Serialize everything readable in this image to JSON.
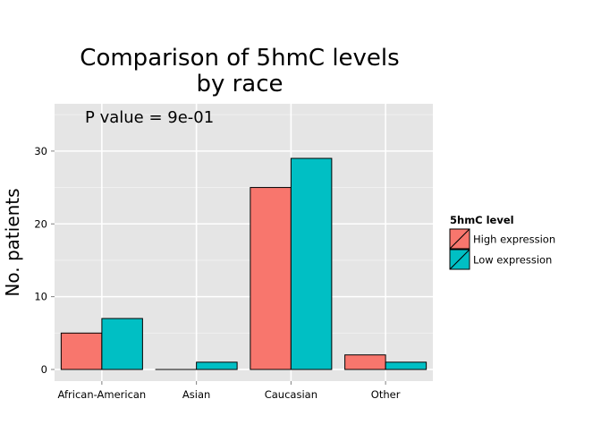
{
  "chart_data": {
    "type": "bar",
    "title_line1": "Comparison of 5hmC levels",
    "title_line2": "by race",
    "annotation": "P value = 9e-01",
    "xlabel": "",
    "ylabel": "No. patients",
    "categories": [
      "African-American",
      "Asian",
      "Caucasian",
      "Other"
    ],
    "series": [
      {
        "name": "High expression",
        "color": "#F8766D",
        "values": [
          5,
          0,
          25,
          2
        ]
      },
      {
        "name": "Low expression",
        "color": "#00BFC4",
        "values": [
          7,
          1,
          29,
          1
        ]
      }
    ],
    "yticks": [
      0,
      10,
      20,
      30
    ],
    "ylim": [
      -1.6,
      36.5
    ],
    "grid": true,
    "legend_title": "5hmC level",
    "legend_position": "right",
    "panel_color": "#E5E5E5"
  }
}
